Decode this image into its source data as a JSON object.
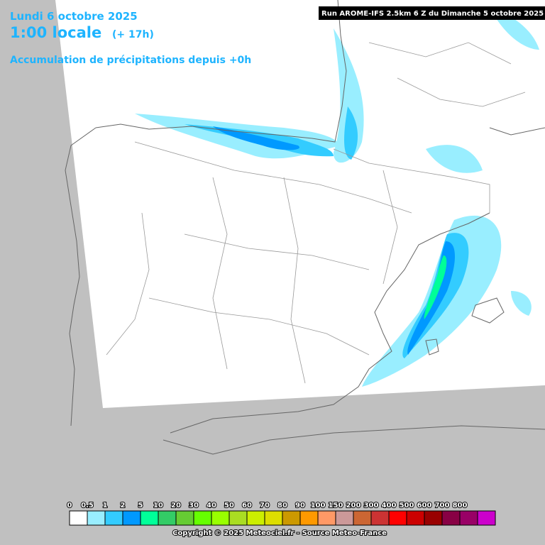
{
  "header": {
    "date": "Lundi 6 octobre 2025",
    "time": "1:00 locale",
    "offset": "(+ 17h)",
    "product": "Accumulation de précipitations depuis +0h",
    "run": "Run AROME-IFS 2.5km 6 Z du Dimanche 5 octobre 2025"
  },
  "legend": {
    "items": [
      {
        "label": "0",
        "color": "#ffffff"
      },
      {
        "label": "0.5",
        "color": "#99eeff"
      },
      {
        "label": "1",
        "color": "#33ccff"
      },
      {
        "label": "2",
        "color": "#0099ff"
      },
      {
        "label": "5",
        "color": "#00ff99"
      },
      {
        "label": "10",
        "color": "#33cc66"
      },
      {
        "label": "20",
        "color": "#66cc33"
      },
      {
        "label": "30",
        "color": "#66ff00"
      },
      {
        "label": "40",
        "color": "#99ff00"
      },
      {
        "label": "50",
        "color": "#aadd22"
      },
      {
        "label": "60",
        "color": "#ccee00"
      },
      {
        "label": "70",
        "color": "#dddd00"
      },
      {
        "label": "80",
        "color": "#cc9900"
      },
      {
        "label": "90",
        "color": "#ff9900"
      },
      {
        "label": "100",
        "color": "#ff9966"
      },
      {
        "label": "150",
        "color": "#cc9999"
      },
      {
        "label": "200",
        "color": "#cc6633"
      },
      {
        "label": "300",
        "color": "#cc3333"
      },
      {
        "label": "400",
        "color": "#ff0000"
      },
      {
        "label": "500",
        "color": "#cc0000"
      },
      {
        "label": "600",
        "color": "#990000"
      },
      {
        "label": "700",
        "color": "#880044"
      },
      {
        "label": "800",
        "color": "#990066"
      },
      {
        "label": null,
        "color": "#cc00cc"
      }
    ]
  },
  "footer": {
    "copyright": "Copyright © 2025 Meteociel.fr - Source Meteo-France"
  }
}
